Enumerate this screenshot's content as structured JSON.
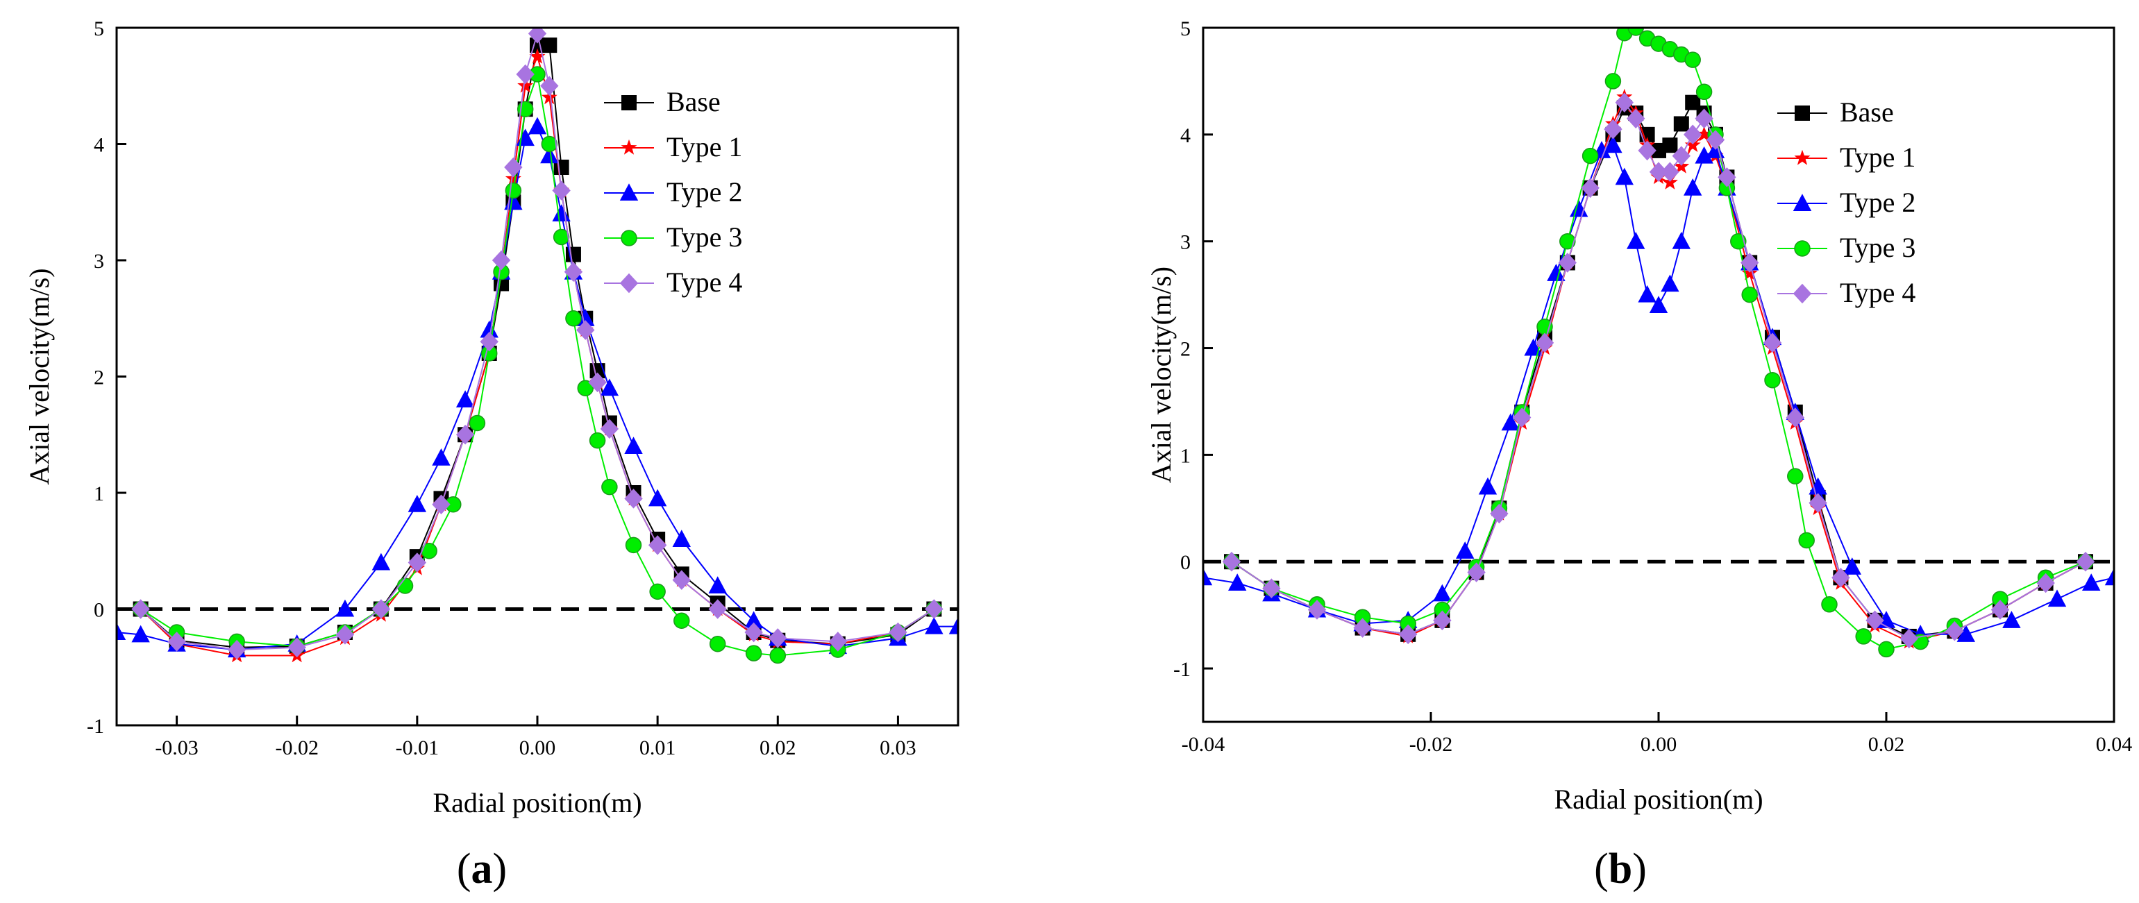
{
  "chart_data": [
    {
      "type": "line",
      "panel_label": "a",
      "title": "",
      "xlabel": "Radial position(m)",
      "ylabel": "Axial velocity(m/s)",
      "xlim": [
        -0.035,
        0.035
      ],
      "ylim": [
        -1,
        5
      ],
      "xticks": [
        -0.03,
        -0.02,
        -0.01,
        0.0,
        0.01,
        0.02,
        0.03
      ],
      "xtick_labels": [
        "-0.03",
        "-0.02",
        "-0.01",
        "0.00",
        "0.01",
        "0.02",
        "0.03"
      ],
      "yticks": [
        -1,
        0,
        1,
        2,
        3,
        4,
        5
      ],
      "ytick_labels": [
        "-1",
        "0",
        "1",
        "2",
        "3",
        "4",
        "5"
      ],
      "grid": false,
      "legend_position": "top-right",
      "reference_line": {
        "y": 0,
        "style": "dashed"
      },
      "series": [
        {
          "name": "Base",
          "color": "#000000",
          "marker": "square",
          "x": [
            -0.033,
            -0.03,
            -0.025,
            -0.02,
            -0.016,
            -0.013,
            -0.01,
            -0.008,
            -0.006,
            -0.004,
            -0.003,
            -0.002,
            -0.001,
            0.0,
            0.001,
            0.002,
            0.003,
            0.004,
            0.005,
            0.006,
            0.008,
            0.01,
            0.012,
            0.015,
            0.018,
            0.02,
            0.025,
            0.03,
            0.033
          ],
          "y": [
            0.0,
            -0.27,
            -0.33,
            -0.32,
            -0.2,
            0.0,
            0.45,
            0.95,
            1.5,
            2.2,
            2.8,
            3.5,
            4.3,
            4.85,
            4.85,
            3.8,
            3.05,
            2.5,
            2.05,
            1.6,
            1.0,
            0.6,
            0.3,
            0.05,
            -0.2,
            -0.27,
            -0.3,
            -0.22,
            0.0
          ]
        },
        {
          "name": "Type 1",
          "color": "#ff0000",
          "marker": "star",
          "x": [
            -0.033,
            -0.03,
            -0.025,
            -0.02,
            -0.016,
            -0.013,
            -0.01,
            -0.008,
            -0.006,
            -0.004,
            -0.003,
            -0.002,
            -0.001,
            0.0,
            0.001,
            0.002,
            0.003,
            0.004,
            0.005,
            0.006,
            0.008,
            0.01,
            0.012,
            0.015,
            0.018,
            0.02,
            0.025,
            0.03,
            0.033
          ],
          "y": [
            0.0,
            -0.3,
            -0.4,
            -0.4,
            -0.25,
            -0.05,
            0.35,
            0.9,
            1.5,
            2.2,
            2.9,
            3.7,
            4.5,
            4.75,
            4.4,
            3.6,
            2.9,
            2.4,
            1.95,
            1.55,
            0.95,
            0.55,
            0.25,
            0.0,
            -0.22,
            -0.28,
            -0.3,
            -0.2,
            0.0
          ]
        },
        {
          "name": "Type 2",
          "color": "#0000ff",
          "marker": "triangle",
          "x": [
            -0.035,
            -0.033,
            -0.03,
            -0.025,
            -0.02,
            -0.016,
            -0.013,
            -0.01,
            -0.008,
            -0.006,
            -0.004,
            -0.003,
            -0.002,
            -0.001,
            0.0,
            0.001,
            0.002,
            0.003,
            0.004,
            0.006,
            0.008,
            0.01,
            0.012,
            0.015,
            0.018,
            0.02,
            0.025,
            0.03,
            0.033,
            0.035
          ],
          "y": [
            -0.2,
            -0.22,
            -0.3,
            -0.35,
            -0.3,
            0.0,
            0.4,
            0.9,
            1.3,
            1.8,
            2.4,
            2.9,
            3.5,
            4.05,
            4.15,
            3.9,
            3.4,
            2.9,
            2.5,
            1.9,
            1.4,
            0.95,
            0.6,
            0.2,
            -0.1,
            -0.25,
            -0.32,
            -0.25,
            -0.15,
            -0.15
          ]
        },
        {
          "name": "Type 3",
          "color": "#00ee00",
          "marker": "circle",
          "x": [
            -0.033,
            -0.03,
            -0.025,
            -0.02,
            -0.016,
            -0.013,
            -0.011,
            -0.009,
            -0.007,
            -0.005,
            -0.004,
            -0.003,
            -0.002,
            -0.001,
            0.0,
            0.001,
            0.002,
            0.003,
            0.004,
            0.005,
            0.006,
            0.008,
            0.01,
            0.012,
            0.015,
            0.018,
            0.02,
            0.025,
            0.03,
            0.033
          ],
          "y": [
            0.0,
            -0.2,
            -0.28,
            -0.32,
            -0.2,
            0.0,
            0.2,
            0.5,
            0.9,
            1.6,
            2.2,
            2.9,
            3.6,
            4.3,
            4.6,
            4.0,
            3.2,
            2.5,
            1.9,
            1.45,
            1.05,
            0.55,
            0.15,
            -0.1,
            -0.3,
            -0.38,
            -0.4,
            -0.35,
            -0.2,
            0.0
          ]
        },
        {
          "name": "Type 4",
          "color": "#a874e0",
          "marker": "diamond",
          "x": [
            -0.033,
            -0.03,
            -0.025,
            -0.02,
            -0.016,
            -0.013,
            -0.01,
            -0.008,
            -0.006,
            -0.004,
            -0.003,
            -0.002,
            -0.001,
            0.0,
            0.001,
            0.002,
            0.003,
            0.004,
            0.005,
            0.006,
            0.008,
            0.01,
            0.012,
            0.015,
            0.018,
            0.02,
            0.025,
            0.03,
            0.033
          ],
          "y": [
            0.0,
            -0.28,
            -0.35,
            -0.33,
            -0.22,
            0.0,
            0.4,
            0.9,
            1.5,
            2.3,
            3.0,
            3.8,
            4.6,
            4.95,
            4.5,
            3.6,
            2.9,
            2.4,
            1.95,
            1.55,
            0.95,
            0.55,
            0.25,
            0.0,
            -0.2,
            -0.25,
            -0.28,
            -0.2,
            0.0
          ]
        }
      ]
    },
    {
      "type": "line",
      "panel_label": "b",
      "title": "",
      "xlabel": "Radial position(m)",
      "ylabel": "Axial velocity(m/s)",
      "xlim": [
        -0.04,
        0.04
      ],
      "ylim": [
        -1.5,
        5
      ],
      "xticks": [
        -0.04,
        -0.02,
        0.0,
        0.02,
        0.04
      ],
      "xtick_labels": [
        "-0.04",
        "-0.02",
        "0.00",
        "0.02",
        "0.04"
      ],
      "yticks": [
        -1,
        0,
        1,
        2,
        3,
        4,
        5
      ],
      "ytick_labels": [
        "-1",
        "0",
        "1",
        "2",
        "3",
        "4",
        "5"
      ],
      "grid": false,
      "legend_position": "top-right",
      "reference_line": {
        "y": 0,
        "style": "dashed"
      },
      "series": [
        {
          "name": "Base",
          "color": "#000000",
          "marker": "square",
          "x": [
            -0.0375,
            -0.034,
            -0.03,
            -0.026,
            -0.022,
            -0.019,
            -0.016,
            -0.014,
            -0.012,
            -0.01,
            -0.008,
            -0.006,
            -0.004,
            -0.003,
            -0.002,
            -0.001,
            0.0,
            0.001,
            0.002,
            0.003,
            0.004,
            0.005,
            0.006,
            0.008,
            0.01,
            0.012,
            0.014,
            0.016,
            0.019,
            0.022,
            0.026,
            0.03,
            0.034,
            0.0375
          ],
          "y": [
            0.0,
            -0.25,
            -0.45,
            -0.62,
            -0.68,
            -0.55,
            -0.1,
            0.5,
            1.4,
            2.1,
            2.8,
            3.5,
            4.0,
            4.25,
            4.2,
            4.0,
            3.85,
            3.9,
            4.1,
            4.3,
            4.2,
            4.0,
            3.6,
            2.8,
            2.1,
            1.4,
            0.6,
            -0.15,
            -0.55,
            -0.7,
            -0.65,
            -0.45,
            -0.2,
            0.0
          ]
        },
        {
          "name": "Type 1",
          "color": "#ff0000",
          "marker": "star",
          "x": [
            -0.0375,
            -0.034,
            -0.03,
            -0.026,
            -0.022,
            -0.019,
            -0.016,
            -0.014,
            -0.012,
            -0.01,
            -0.008,
            -0.006,
            -0.004,
            -0.003,
            -0.002,
            -0.001,
            0.0,
            0.001,
            0.002,
            0.003,
            0.004,
            0.005,
            0.006,
            0.008,
            0.01,
            0.012,
            0.014,
            0.016,
            0.019,
            0.022,
            0.026,
            0.03,
            0.034,
            0.0375
          ],
          "y": [
            0.0,
            -0.25,
            -0.45,
            -0.62,
            -0.7,
            -0.55,
            -0.1,
            0.45,
            1.3,
            2.0,
            2.8,
            3.5,
            4.1,
            4.35,
            4.2,
            3.9,
            3.6,
            3.55,
            3.7,
            3.9,
            4.0,
            3.8,
            3.5,
            2.7,
            2.0,
            1.3,
            0.5,
            -0.2,
            -0.6,
            -0.75,
            -0.65,
            -0.45,
            -0.2,
            0.0
          ]
        },
        {
          "name": "Type 2",
          "color": "#0000ff",
          "marker": "triangle",
          "x": [
            -0.04,
            -0.037,
            -0.034,
            -0.03,
            -0.026,
            -0.022,
            -0.019,
            -0.017,
            -0.015,
            -0.013,
            -0.011,
            -0.009,
            -0.007,
            -0.005,
            -0.004,
            -0.003,
            -0.002,
            -0.001,
            0.0,
            0.001,
            0.002,
            0.003,
            0.004,
            0.005,
            0.006,
            0.008,
            0.01,
            0.012,
            0.014,
            0.017,
            0.02,
            0.023,
            0.027,
            0.031,
            0.035,
            0.038,
            0.04
          ],
          "y": [
            -0.15,
            -0.2,
            -0.3,
            -0.45,
            -0.58,
            -0.55,
            -0.3,
            0.1,
            0.7,
            1.3,
            2.0,
            2.7,
            3.3,
            3.85,
            3.9,
            3.6,
            3.0,
            2.5,
            2.4,
            2.6,
            3.0,
            3.5,
            3.8,
            3.85,
            3.5,
            2.8,
            2.1,
            1.4,
            0.7,
            -0.05,
            -0.55,
            -0.68,
            -0.68,
            -0.55,
            -0.35,
            -0.2,
            -0.15
          ]
        },
        {
          "name": "Type 3",
          "color": "#00ee00",
          "marker": "circle",
          "x": [
            -0.0375,
            -0.034,
            -0.03,
            -0.026,
            -0.022,
            -0.019,
            -0.016,
            -0.014,
            -0.012,
            -0.01,
            -0.008,
            -0.006,
            -0.004,
            -0.003,
            -0.002,
            -0.001,
            0.0,
            0.001,
            0.002,
            0.003,
            0.004,
            0.005,
            0.006,
            0.007,
            0.008,
            0.01,
            0.012,
            0.013,
            0.015,
            0.018,
            0.02,
            0.023,
            0.026,
            0.03,
            0.034,
            0.0375
          ],
          "y": [
            0.0,
            -0.25,
            -0.4,
            -0.52,
            -0.58,
            -0.45,
            -0.05,
            0.5,
            1.4,
            2.2,
            3.0,
            3.8,
            4.5,
            4.95,
            5.0,
            4.9,
            4.85,
            4.8,
            4.75,
            4.7,
            4.4,
            4.0,
            3.5,
            3.0,
            2.5,
            1.7,
            0.8,
            0.2,
            -0.4,
            -0.7,
            -0.82,
            -0.75,
            -0.6,
            -0.35,
            -0.15,
            0.0
          ]
        },
        {
          "name": "Type 4",
          "color": "#a874e0",
          "marker": "diamond",
          "x": [
            -0.0375,
            -0.034,
            -0.03,
            -0.026,
            -0.022,
            -0.019,
            -0.016,
            -0.014,
            -0.012,
            -0.01,
            -0.008,
            -0.006,
            -0.004,
            -0.003,
            -0.002,
            -0.001,
            0.0,
            0.001,
            0.002,
            0.003,
            0.004,
            0.005,
            0.006,
            0.008,
            0.01,
            0.012,
            0.014,
            0.016,
            0.019,
            0.022,
            0.026,
            0.03,
            0.034,
            0.0375
          ],
          "y": [
            0.0,
            -0.25,
            -0.45,
            -0.62,
            -0.68,
            -0.55,
            -0.1,
            0.45,
            1.35,
            2.05,
            2.8,
            3.5,
            4.05,
            4.3,
            4.15,
            3.85,
            3.65,
            3.65,
            3.8,
            4.0,
            4.15,
            3.95,
            3.6,
            2.8,
            2.05,
            1.35,
            0.55,
            -0.15,
            -0.55,
            -0.72,
            -0.65,
            -0.45,
            -0.2,
            0.0
          ]
        }
      ]
    }
  ]
}
